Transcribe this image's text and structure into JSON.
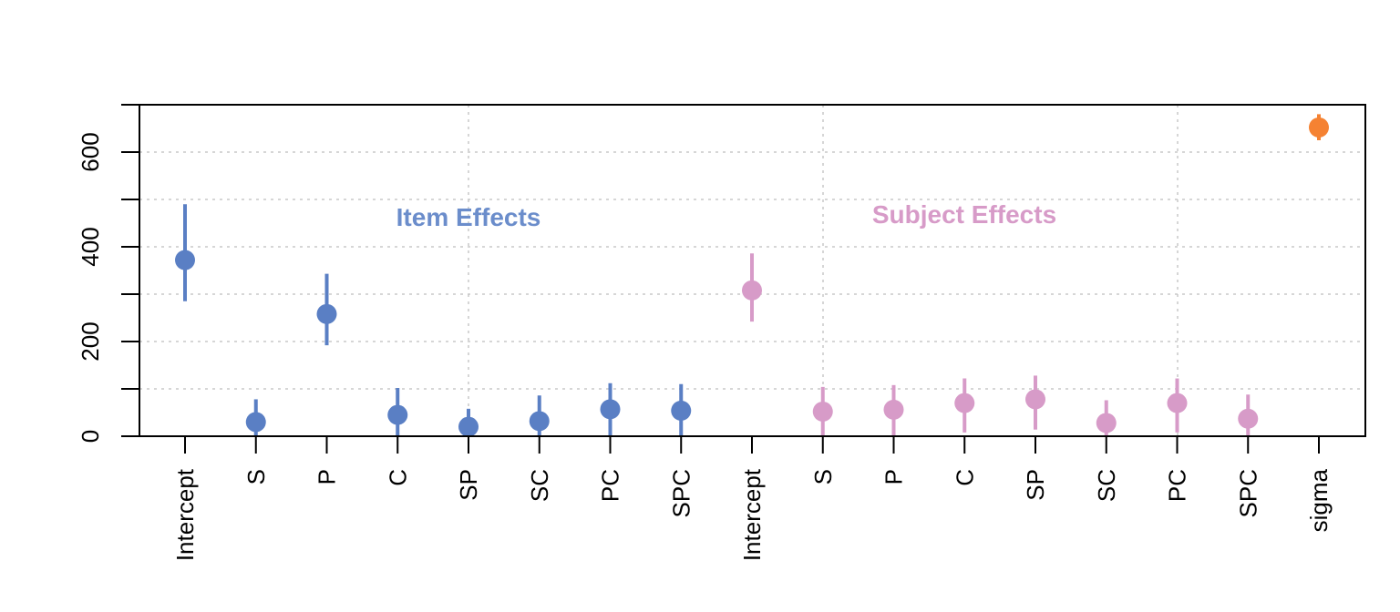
{
  "chart_data": {
    "type": "scatter",
    "title": "",
    "xlabel": "",
    "ylabel": "",
    "ylim": [
      0,
      700
    ],
    "y_ticks": [
      "0",
      "200",
      "400",
      "600"
    ],
    "grid": true,
    "error_bars": "vertical interval per point",
    "categories": [
      "Intercept",
      "S",
      "P",
      "C",
      "SP",
      "SC",
      "PC",
      "SPC",
      "Intercept",
      "S",
      "P",
      "C",
      "SP",
      "SC",
      "PC",
      "SPC",
      "sigma"
    ],
    "series": [
      {
        "name": "Item Effects",
        "color": "#5a7fc4",
        "points": [
          {
            "x": "Intercept",
            "y": 372,
            "low": 285,
            "high": 490
          },
          {
            "x": "S",
            "y": 30,
            "low": 0,
            "high": 78
          },
          {
            "x": "P",
            "y": 258,
            "low": 192,
            "high": 343
          },
          {
            "x": "C",
            "y": 45,
            "low": 0,
            "high": 102
          },
          {
            "x": "SP",
            "y": 20,
            "low": 0,
            "high": 58
          },
          {
            "x": "SC",
            "y": 32,
            "low": 0,
            "high": 86
          },
          {
            "x": "PC",
            "y": 57,
            "low": 0,
            "high": 112
          },
          {
            "x": "SPC",
            "y": 54,
            "low": 0,
            "high": 110
          }
        ]
      },
      {
        "name": "Subject Effects",
        "color": "#d79bc8",
        "points": [
          {
            "x": "Intercept",
            "y": 308,
            "low": 242,
            "high": 386
          },
          {
            "x": "S",
            "y": 52,
            "low": 0,
            "high": 104
          },
          {
            "x": "P",
            "y": 56,
            "low": 0,
            "high": 108
          },
          {
            "x": "C",
            "y": 70,
            "low": 8,
            "high": 122
          },
          {
            "x": "SP",
            "y": 78,
            "low": 14,
            "high": 128
          },
          {
            "x": "SC",
            "y": 28,
            "low": 0,
            "high": 76
          },
          {
            "x": "PC",
            "y": 70,
            "low": 8,
            "high": 122
          },
          {
            "x": "SPC",
            "y": 37,
            "low": 0,
            "high": 88
          }
        ]
      },
      {
        "color": "#f58232",
        "points": [
          {
            "x": "sigma",
            "y": 652,
            "low": 625,
            "high": 680
          }
        ]
      }
    ],
    "annotations": [
      {
        "text": "Item Effects",
        "color": "#6b8dcb"
      },
      {
        "text": "Subject Effects",
        "color": "#d79bc8"
      }
    ]
  }
}
